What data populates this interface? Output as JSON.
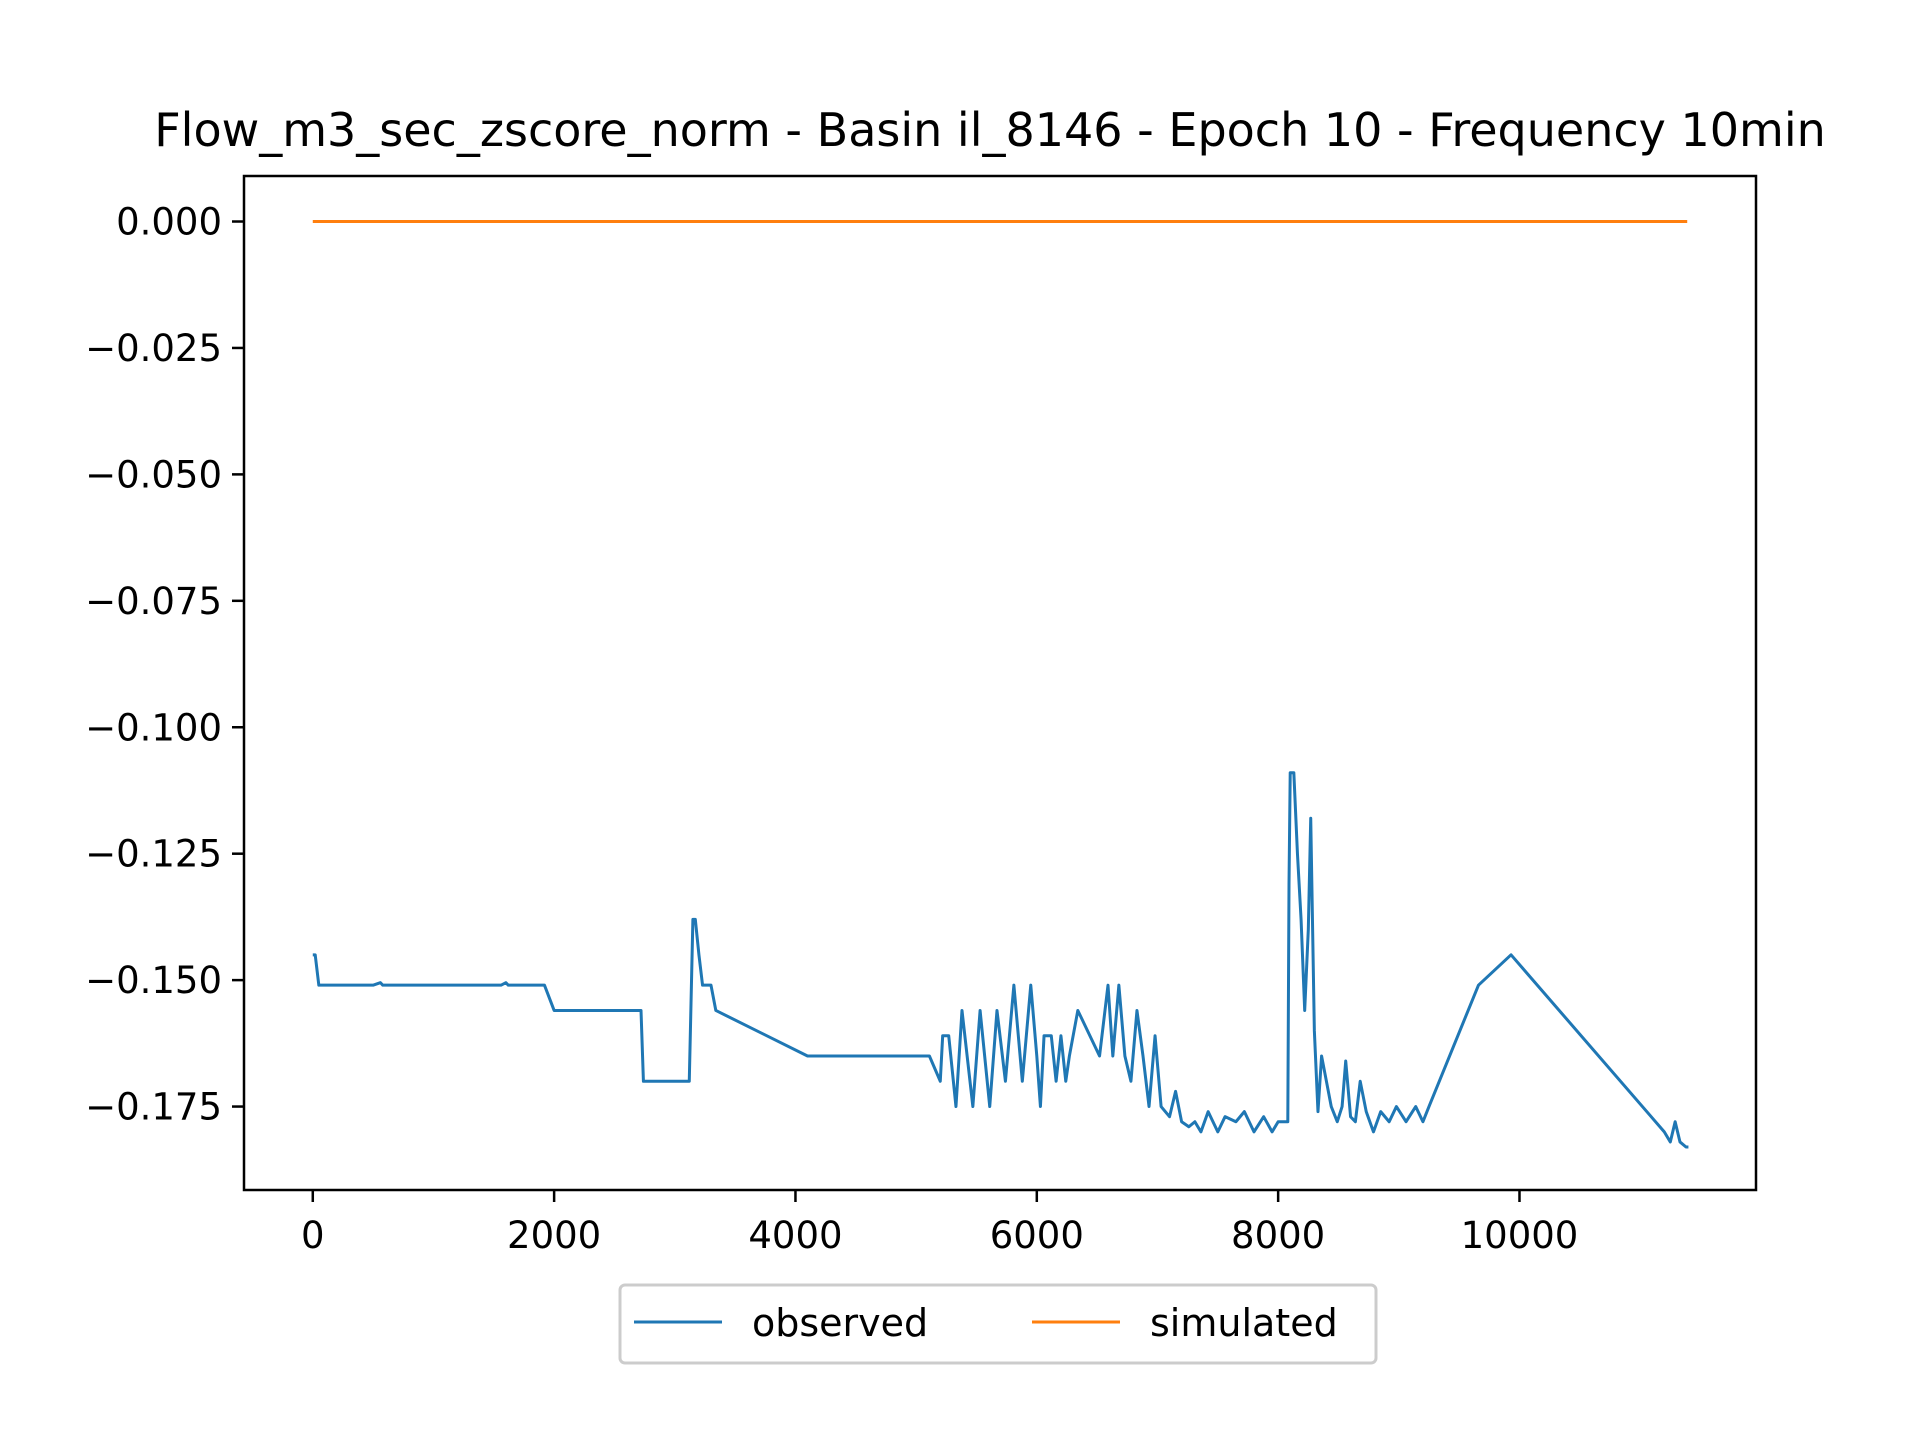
{
  "chart_data": {
    "type": "line",
    "title": "Flow_m3_sec_zscore_norm - Basin il_8146 - Epoch 10 - Frequency 10min",
    "xlabel": "",
    "ylabel": "",
    "xlim": [
      -570,
      11960
    ],
    "ylim": [
      -0.1915,
      0.009
    ],
    "x_ticks": [
      0,
      2000,
      4000,
      6000,
      8000,
      10000
    ],
    "x_tick_labels": [
      "0",
      "2000",
      "4000",
      "6000",
      "8000",
      "10000"
    ],
    "y_ticks": [
      0.0,
      -0.025,
      -0.05,
      -0.075,
      -0.1,
      -0.125,
      -0.15,
      -0.175
    ],
    "y_tick_labels": [
      "0.000",
      "−0.025",
      "−0.050",
      "−0.075",
      "−0.100",
      "−0.125",
      "−0.150",
      "−0.175"
    ],
    "grid": false,
    "legend_position": "bottom-center-outside",
    "series": [
      {
        "name": "observed",
        "color": "#1f77b4",
        "points": [
          [
            0,
            -0.145
          ],
          [
            20,
            -0.145
          ],
          [
            50,
            -0.151
          ],
          [
            500,
            -0.151
          ],
          [
            560,
            -0.1505
          ],
          [
            580,
            -0.151
          ],
          [
            1560,
            -0.151
          ],
          [
            1600,
            -0.1505
          ],
          [
            1620,
            -0.151
          ],
          [
            1920,
            -0.151
          ],
          [
            2000,
            -0.156
          ],
          [
            2720,
            -0.156
          ],
          [
            2740,
            -0.17
          ],
          [
            3120,
            -0.17
          ],
          [
            3150,
            -0.138
          ],
          [
            3170,
            -0.138
          ],
          [
            3200,
            -0.145
          ],
          [
            3230,
            -0.151
          ],
          [
            3300,
            -0.151
          ],
          [
            3340,
            -0.156
          ],
          [
            4100,
            -0.165
          ],
          [
            5110,
            -0.165
          ],
          [
            5200,
            -0.17
          ],
          [
            5220,
            -0.161
          ],
          [
            5270,
            -0.161
          ],
          [
            5330,
            -0.175
          ],
          [
            5380,
            -0.156
          ],
          [
            5470,
            -0.175
          ],
          [
            5530,
            -0.156
          ],
          [
            5610,
            -0.175
          ],
          [
            5670,
            -0.156
          ],
          [
            5740,
            -0.17
          ],
          [
            5810,
            -0.151
          ],
          [
            5880,
            -0.17
          ],
          [
            5950,
            -0.151
          ],
          [
            6000,
            -0.165
          ],
          [
            6030,
            -0.175
          ],
          [
            6060,
            -0.161
          ],
          [
            6120,
            -0.161
          ],
          [
            6160,
            -0.17
          ],
          [
            6200,
            -0.161
          ],
          [
            6240,
            -0.17
          ],
          [
            6270,
            -0.165
          ],
          [
            6340,
            -0.156
          ],
          [
            6520,
            -0.165
          ],
          [
            6590,
            -0.151
          ],
          [
            6630,
            -0.165
          ],
          [
            6680,
            -0.151
          ],
          [
            6730,
            -0.165
          ],
          [
            6780,
            -0.17
          ],
          [
            6830,
            -0.156
          ],
          [
            6880,
            -0.165
          ],
          [
            6930,
            -0.175
          ],
          [
            6980,
            -0.161
          ],
          [
            7030,
            -0.175
          ],
          [
            7100,
            -0.177
          ],
          [
            7150,
            -0.172
          ],
          [
            7200,
            -0.178
          ],
          [
            7260,
            -0.179
          ],
          [
            7310,
            -0.178
          ],
          [
            7360,
            -0.18
          ],
          [
            7420,
            -0.176
          ],
          [
            7500,
            -0.18
          ],
          [
            7560,
            -0.177
          ],
          [
            7650,
            -0.178
          ],
          [
            7720,
            -0.176
          ],
          [
            7800,
            -0.18
          ],
          [
            7880,
            -0.177
          ],
          [
            7950,
            -0.18
          ],
          [
            8000,
            -0.178
          ],
          [
            8080,
            -0.178
          ],
          [
            8090,
            -0.131
          ],
          [
            8100,
            -0.109
          ],
          [
            8130,
            -0.109
          ],
          [
            8160,
            -0.125
          ],
          [
            8190,
            -0.138
          ],
          [
            8220,
            -0.156
          ],
          [
            8250,
            -0.14
          ],
          [
            8270,
            -0.118
          ],
          [
            8300,
            -0.16
          ],
          [
            8330,
            -0.176
          ],
          [
            8360,
            -0.165
          ],
          [
            8400,
            -0.17
          ],
          [
            8440,
            -0.175
          ],
          [
            8490,
            -0.178
          ],
          [
            8530,
            -0.175
          ],
          [
            8560,
            -0.166
          ],
          [
            8600,
            -0.177
          ],
          [
            8640,
            -0.178
          ],
          [
            8680,
            -0.17
          ],
          [
            8730,
            -0.176
          ],
          [
            8790,
            -0.18
          ],
          [
            8850,
            -0.176
          ],
          [
            8920,
            -0.178
          ],
          [
            8980,
            -0.175
          ],
          [
            9060,
            -0.178
          ],
          [
            9140,
            -0.175
          ],
          [
            9200,
            -0.178
          ],
          [
            9250,
            -0.175
          ],
          [
            9660,
            -0.151
          ],
          [
            9930,
            -0.145
          ],
          [
            11200,
            -0.18
          ],
          [
            11250,
            -0.182
          ],
          [
            11290,
            -0.178
          ],
          [
            11330,
            -0.182
          ],
          [
            11380,
            -0.183
          ],
          [
            11400,
            -0.183
          ]
        ]
      },
      {
        "name": "simulated",
        "color": "#ff7f0e",
        "points": [
          [
            0,
            0.0
          ],
          [
            11390,
            0.0
          ]
        ]
      }
    ]
  }
}
